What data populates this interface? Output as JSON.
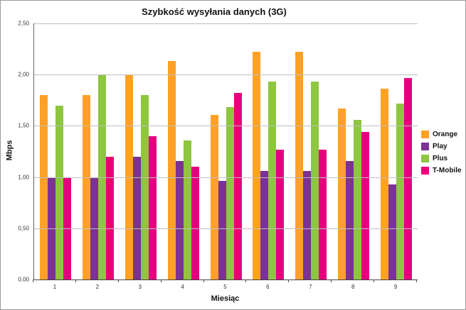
{
  "chart": {
    "title": "Szybkość wysyłania danych (3G)",
    "y_axis_title": "Mbps",
    "x_axis_title": "Miesiąc"
  },
  "chart_data": {
    "type": "bar",
    "title": "Szybkość wysyłania danych (3G)",
    "xlabel": "Miesiąc",
    "ylabel": "Mbps",
    "ylim": [
      0,
      2.5
    ],
    "grid": true,
    "legend_position": "right",
    "y_tick_labels": [
      "0,00",
      "0,50",
      "1,00",
      "1,50",
      "2,00",
      "2,50"
    ],
    "categories": [
      "1",
      "2",
      "3",
      "4",
      "5",
      "6",
      "7",
      "8",
      "9"
    ],
    "series": [
      {
        "name": "Orange",
        "color": "#FFA126",
        "values": [
          1.8,
          1.8,
          2.0,
          2.13,
          1.61,
          2.22,
          2.22,
          1.67,
          1.86
        ]
      },
      {
        "name": "Play",
        "color": "#7B3294",
        "values": [
          1.0,
          1.0,
          1.2,
          1.16,
          0.96,
          1.06,
          1.06,
          1.16,
          0.93
        ]
      },
      {
        "name": "Plus",
        "color": "#8DC63F",
        "values": [
          1.7,
          2.0,
          1.8,
          1.36,
          1.68,
          1.93,
          1.93,
          1.56,
          1.72
        ]
      },
      {
        "name": "T-Mobile",
        "color": "#E6007E",
        "values": [
          1.0,
          1.2,
          1.4,
          1.1,
          1.82,
          1.27,
          1.27,
          1.44,
          1.97
        ]
      }
    ]
  }
}
